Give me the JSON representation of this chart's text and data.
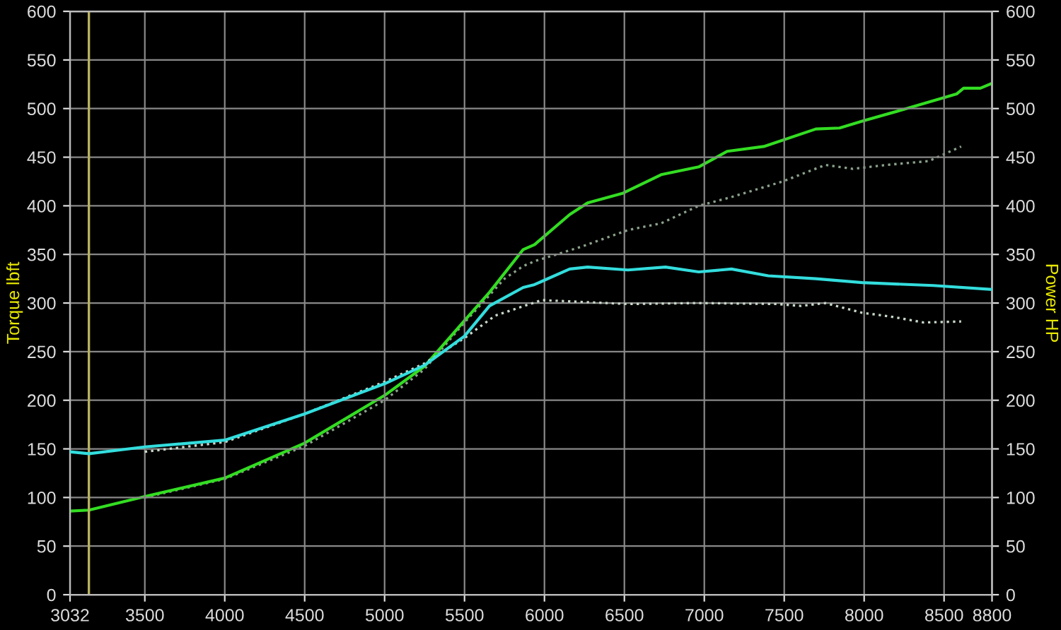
{
  "chart_data": {
    "type": "line",
    "ylabel": "Torque lbft",
    "y2label": "Power HP",
    "xlim": [
      3032,
      8800
    ],
    "xticks": [
      3032,
      3500,
      4000,
      4500,
      5000,
      5500,
      6000,
      6500,
      7000,
      7500,
      8000,
      8500,
      8800
    ],
    "ylim": [
      0,
      600
    ],
    "yticks": [
      0,
      50,
      100,
      150,
      200,
      250,
      300,
      350,
      400,
      450,
      500,
      550,
      600
    ],
    "y2lim": [
      0,
      600
    ],
    "y2ticks": [
      0,
      50,
      100,
      150,
      200,
      250,
      300,
      350,
      400,
      450,
      500,
      550,
      600
    ],
    "grid": true,
    "marker": "none",
    "ref_lines": [
      {
        "axis": "x",
        "value": 3150,
        "color": "#b8b060"
      }
    ],
    "series": [
      {
        "color": "#8aa08a",
        "axis": "y2",
        "line_style": "dotted",
        "x": [
          3500,
          4000,
          4500,
          5000,
          5250,
          5500,
          5750,
          5867,
          5938,
          6232,
          6522,
          6730,
          6965,
          7170,
          7490,
          7757,
          7930,
          8138,
          8404,
          8607
        ],
        "values": [
          100,
          119,
          153,
          200,
          232,
          280,
          325,
          338,
          343,
          358,
          375,
          382,
          400,
          409,
          425,
          442,
          438,
          442,
          446,
          461
        ]
      },
      {
        "color": "#c8d8c8",
        "line_style": "dotted",
        "x": [
          3500,
          4000,
          4500,
          5000,
          5250,
          5500,
          5691,
          5982,
          6522,
          6965,
          7460,
          7604,
          7757,
          7988,
          8168,
          8374,
          8607
        ],
        "values": [
          147,
          157,
          186,
          219,
          238,
          264,
          287,
          303,
          299,
          300,
          299,
          297,
          300,
          290,
          286,
          280,
          281
        ]
      },
      {
        "color": "#33dd22",
        "axis": "y2",
        "line_style": "solid",
        "x": [
          3032,
          3150,
          3500,
          4000,
          4500,
          5000,
          5250,
          5500,
          5656,
          5867,
          5938,
          6158,
          6270,
          6492,
          6730,
          6965,
          7143,
          7372,
          7698,
          7846,
          7988,
          8287,
          8578,
          8622,
          8727,
          8800
        ],
        "values": [
          86,
          87,
          101,
          120,
          156,
          205,
          235,
          282,
          311,
          355,
          360,
          391,
          403,
          413,
          432,
          440,
          456,
          461,
          479,
          480,
          487,
          501,
          515,
          521,
          521,
          526
        ]
      },
      {
        "color": "#33dddd",
        "line_style": "solid",
        "x": [
          3032,
          3150,
          3500,
          4000,
          4500,
          5000,
          5250,
          5500,
          5656,
          5867,
          5938,
          6158,
          6270,
          6522,
          6757,
          6965,
          7170,
          7400,
          7698,
          7988,
          8433,
          8800
        ],
        "values": [
          147,
          145,
          152,
          159,
          186,
          217,
          236,
          266,
          297,
          316,
          319,
          335,
          337,
          334,
          337,
          332,
          335,
          328,
          325,
          321,
          318,
          314
        ]
      }
    ]
  }
}
